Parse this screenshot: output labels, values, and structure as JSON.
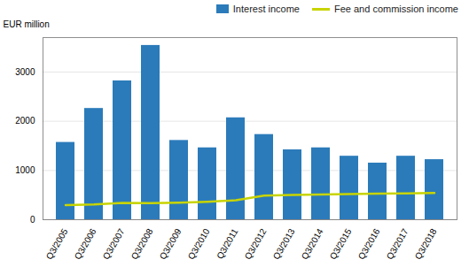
{
  "chart_data": {
    "type": "bar",
    "ylabel": "EUR million",
    "categories": [
      "Q3/2005",
      "Q3/2006",
      "Q3/2007",
      "Q3/2008",
      "Q3/2009",
      "Q3/2010",
      "Q3/2011",
      "Q3/2012",
      "Q3/2013",
      "Q3/2014",
      "Q3/2015",
      "Q3/2016",
      "Q3/2017",
      "Q3/2018"
    ],
    "series": [
      {
        "name": "Interest income",
        "type": "bar",
        "color": "#2b7bba",
        "values": [
          1570,
          2260,
          2820,
          3540,
          1610,
          1460,
          2070,
          1730,
          1420,
          1460,
          1290,
          1150,
          1290,
          1220
        ]
      },
      {
        "name": "Fee and commission income",
        "type": "line",
        "color": "#c8d400",
        "values": [
          295,
          310,
          340,
          335,
          345,
          365,
          395,
          490,
          505,
          510,
          520,
          530,
          535,
          545
        ]
      }
    ],
    "ylim": [
      0,
      3700
    ],
    "yticks": [
      0,
      1000,
      2000,
      3000
    ],
    "grid": true,
    "legend": "upper right"
  }
}
